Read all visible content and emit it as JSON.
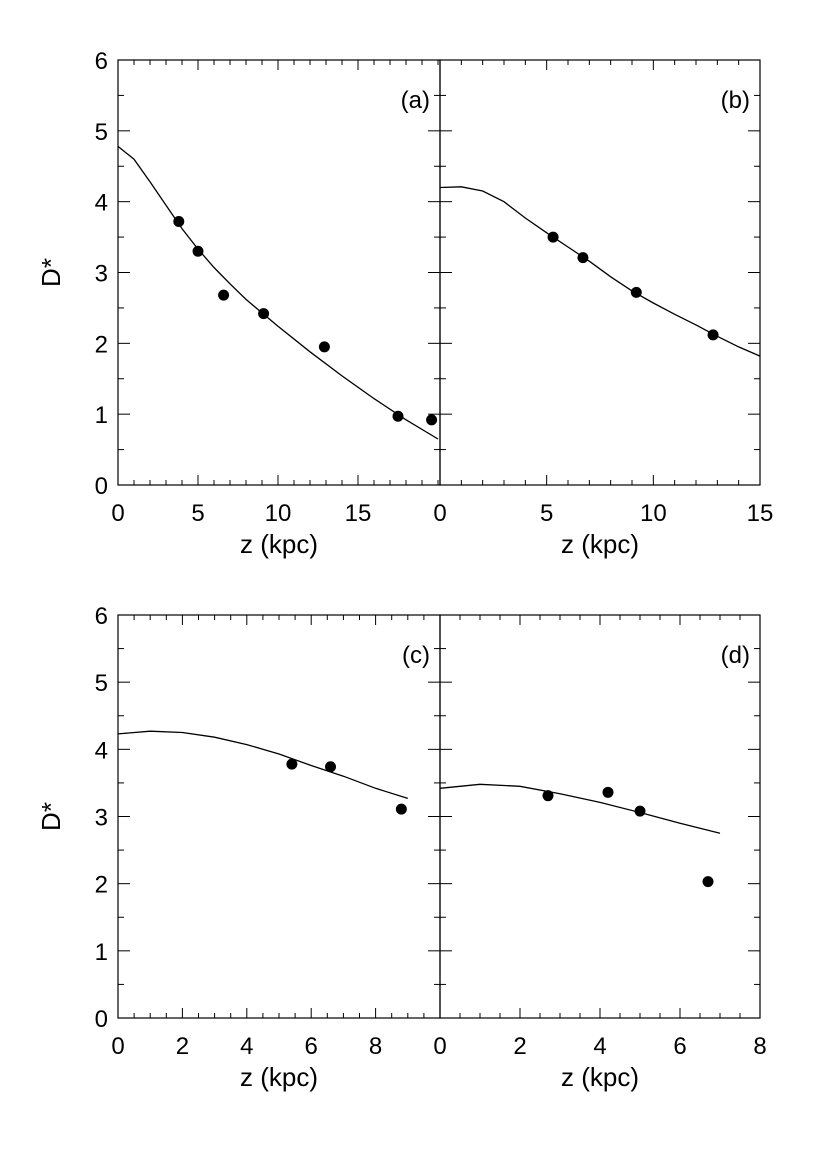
{
  "chart_data": [
    {
      "id": "a",
      "type": "scatter",
      "panel_label": "(a)",
      "xlabel": "z (kpc)",
      "ylabel": "D*",
      "xlim": [
        0,
        20
      ],
      "ylim": [
        0,
        6
      ],
      "xticks": [
        0,
        5,
        10,
        15
      ],
      "xtick_labels": [
        "0",
        "5",
        "10",
        "15"
      ],
      "yticks": [
        0,
        1,
        2,
        3,
        4,
        5,
        6
      ],
      "ytick_labels": [
        "0",
        "1",
        "2",
        "3",
        "4",
        "5",
        "6"
      ],
      "points": [
        {
          "x": 3.8,
          "y": 3.72
        },
        {
          "x": 5.0,
          "y": 3.3
        },
        {
          "x": 6.6,
          "y": 2.68
        },
        {
          "x": 9.1,
          "y": 2.42
        },
        {
          "x": 12.9,
          "y": 1.95
        },
        {
          "x": 17.5,
          "y": 0.97
        },
        {
          "x": 19.6,
          "y": 0.92
        }
      ],
      "curve": [
        {
          "x": 0,
          "y": 4.78
        },
        {
          "x": 1,
          "y": 4.6
        },
        {
          "x": 2,
          "y": 4.28
        },
        {
          "x": 3,
          "y": 3.95
        },
        {
          "x": 4,
          "y": 3.62
        },
        {
          "x": 5,
          "y": 3.33
        },
        {
          "x": 6,
          "y": 3.07
        },
        {
          "x": 7,
          "y": 2.84
        },
        {
          "x": 8,
          "y": 2.62
        },
        {
          "x": 10,
          "y": 2.24
        },
        {
          "x": 12,
          "y": 1.88
        },
        {
          "x": 14,
          "y": 1.54
        },
        {
          "x": 16,
          "y": 1.22
        },
        {
          "x": 18,
          "y": 0.92
        },
        {
          "x": 20,
          "y": 0.65
        }
      ]
    },
    {
      "id": "b",
      "type": "scatter",
      "panel_label": "(b)",
      "xlabel": "z (kpc)",
      "ylabel": "",
      "xlim": [
        0,
        15
      ],
      "ylim": [
        0,
        6
      ],
      "xticks": [
        0,
        5,
        10,
        15
      ],
      "xtick_labels": [
        "0",
        "5",
        "10",
        "15"
      ],
      "yticks": [],
      "ytick_labels": [],
      "points": [
        {
          "x": 5.3,
          "y": 3.5
        },
        {
          "x": 6.7,
          "y": 3.21
        },
        {
          "x": 9.2,
          "y": 2.72
        },
        {
          "x": 12.8,
          "y": 2.12
        }
      ],
      "curve": [
        {
          "x": 0,
          "y": 4.2
        },
        {
          "x": 1,
          "y": 4.21
        },
        {
          "x": 2,
          "y": 4.15
        },
        {
          "x": 3,
          "y": 4.0
        },
        {
          "x": 4,
          "y": 3.77
        },
        {
          "x": 5,
          "y": 3.56
        },
        {
          "x": 6,
          "y": 3.36
        },
        {
          "x": 7,
          "y": 3.16
        },
        {
          "x": 8,
          "y": 2.94
        },
        {
          "x": 9,
          "y": 2.74
        },
        {
          "x": 10,
          "y": 2.57
        },
        {
          "x": 11,
          "y": 2.41
        },
        {
          "x": 12,
          "y": 2.26
        },
        {
          "x": 13,
          "y": 2.1
        },
        {
          "x": 14,
          "y": 1.95
        },
        {
          "x": 15,
          "y": 1.82
        }
      ]
    },
    {
      "id": "c",
      "type": "scatter",
      "panel_label": "(c)",
      "xlabel": "z (kpc)",
      "ylabel": "D*",
      "xlim": [
        0,
        10
      ],
      "ylim": [
        0,
        6
      ],
      "xticks": [
        0,
        2,
        4,
        6,
        8
      ],
      "xtick_labels": [
        "0",
        "2",
        "4",
        "6",
        "8"
      ],
      "yticks": [
        0,
        1,
        2,
        3,
        4,
        5,
        6
      ],
      "ytick_labels": [
        "0",
        "1",
        "2",
        "3",
        "4",
        "5",
        "6"
      ],
      "points": [
        {
          "x": 5.4,
          "y": 3.78
        },
        {
          "x": 6.6,
          "y": 3.74
        },
        {
          "x": 8.8,
          "y": 3.11
        }
      ],
      "curve": [
        {
          "x": 0,
          "y": 4.23
        },
        {
          "x": 1,
          "y": 4.27
        },
        {
          "x": 2,
          "y": 4.25
        },
        {
          "x": 3,
          "y": 4.18
        },
        {
          "x": 4,
          "y": 4.07
        },
        {
          "x": 5,
          "y": 3.93
        },
        {
          "x": 6,
          "y": 3.76
        },
        {
          "x": 7,
          "y": 3.6
        },
        {
          "x": 8,
          "y": 3.42
        },
        {
          "x": 9,
          "y": 3.27
        }
      ]
    },
    {
      "id": "d",
      "type": "scatter",
      "panel_label": "(d)",
      "xlabel": "z (kpc)",
      "ylabel": "",
      "xlim": [
        0,
        8
      ],
      "ylim": [
        0,
        6
      ],
      "xticks": [
        0,
        2,
        4,
        6,
        8
      ],
      "xtick_labels": [
        "0",
        "2",
        "4",
        "6",
        "8"
      ],
      "yticks": [],
      "ytick_labels": [],
      "points": [
        {
          "x": 2.7,
          "y": 3.31
        },
        {
          "x": 4.2,
          "y": 3.36
        },
        {
          "x": 5.0,
          "y": 3.08
        },
        {
          "x": 6.7,
          "y": 2.03
        }
      ],
      "curve": [
        {
          "x": 0,
          "y": 3.42
        },
        {
          "x": 1,
          "y": 3.48
        },
        {
          "x": 2,
          "y": 3.45
        },
        {
          "x": 3,
          "y": 3.34
        },
        {
          "x": 4,
          "y": 3.21
        },
        {
          "x": 5,
          "y": 3.06
        },
        {
          "x": 6,
          "y": 2.9
        },
        {
          "x": 7,
          "y": 2.75
        }
      ]
    }
  ]
}
